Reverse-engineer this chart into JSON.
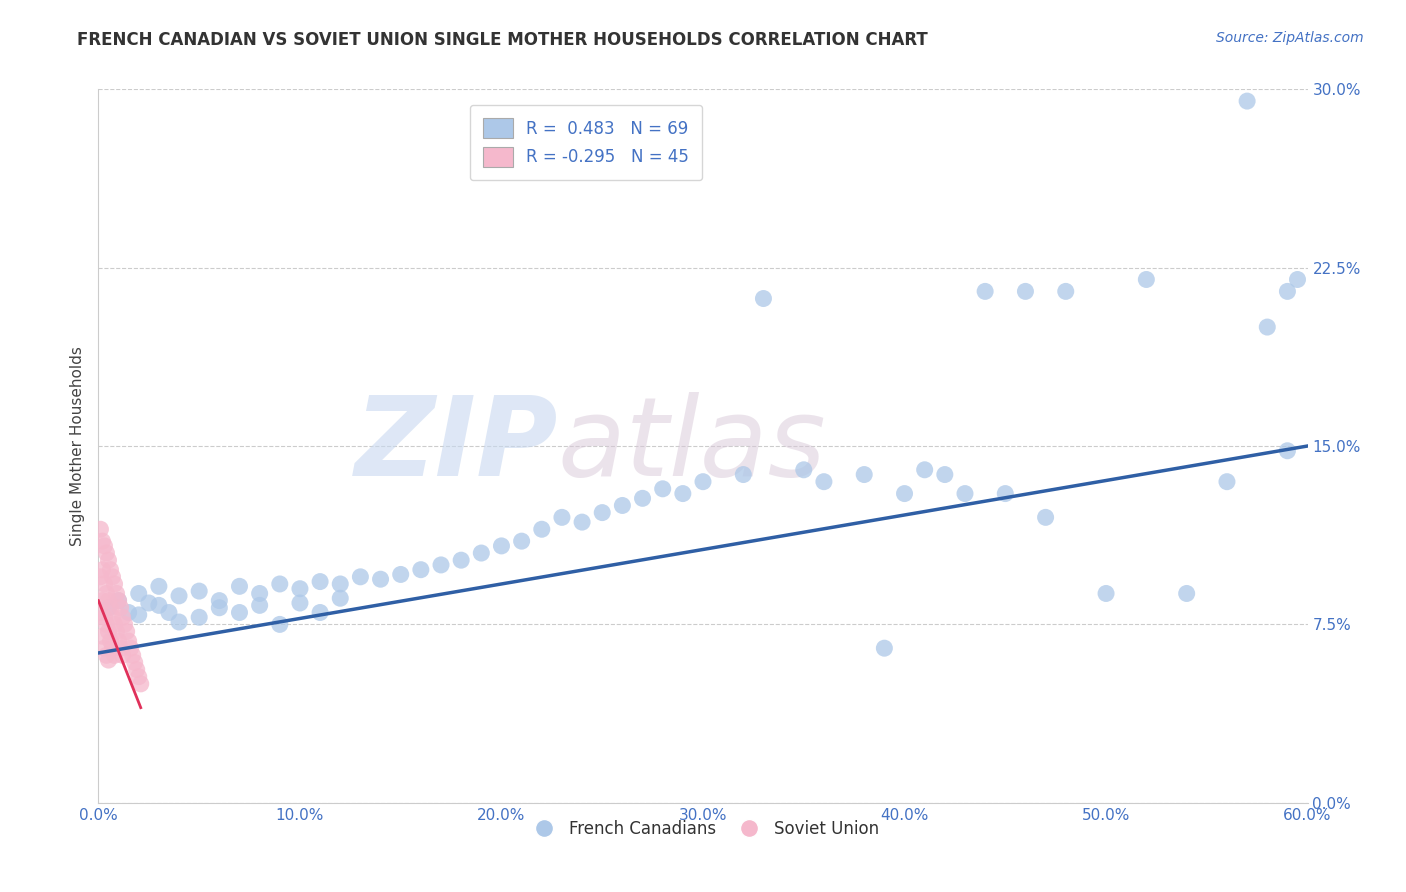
{
  "title": "FRENCH CANADIAN VS SOVIET UNION SINGLE MOTHER HOUSEHOLDS CORRELATION CHART",
  "source_text": "Source: ZipAtlas.com",
  "xlabel_ticks": [
    "0.0%",
    "10.0%",
    "20.0%",
    "30.0%",
    "40.0%",
    "50.0%",
    "60.0%"
  ],
  "ylabel_ticks": [
    "0.0%",
    "7.5%",
    "15.0%",
    "22.5%",
    "30.0%"
  ],
  "xlim": [
    0.0,
    0.6
  ],
  "ylim": [
    0.0,
    0.3
  ],
  "R_blue": 0.483,
  "N_blue": 69,
  "R_pink": -0.295,
  "N_pink": 45,
  "legend_label_blue": "French Canadians",
  "legend_label_pink": "Soviet Union",
  "watermark_text": "ZIP",
  "watermark_text2": "atlas",
  "blue_scatter_color": "#adc8e8",
  "blue_line_color": "#2f5fa5",
  "pink_scatter_color": "#f5b8cc",
  "pink_line_color": "#e0305a",
  "blue_scatter_x": [
    0.005,
    0.01,
    0.015,
    0.02,
    0.02,
    0.025,
    0.03,
    0.03,
    0.035,
    0.04,
    0.04,
    0.05,
    0.05,
    0.06,
    0.06,
    0.07,
    0.07,
    0.08,
    0.08,
    0.09,
    0.09,
    0.1,
    0.1,
    0.11,
    0.11,
    0.12,
    0.12,
    0.13,
    0.14,
    0.15,
    0.16,
    0.17,
    0.18,
    0.19,
    0.2,
    0.21,
    0.22,
    0.23,
    0.24,
    0.25,
    0.26,
    0.27,
    0.28,
    0.29,
    0.3,
    0.32,
    0.33,
    0.35,
    0.36,
    0.38,
    0.39,
    0.4,
    0.41,
    0.42,
    0.43,
    0.44,
    0.45,
    0.46,
    0.47,
    0.48,
    0.5,
    0.52,
    0.54,
    0.56,
    0.57,
    0.58,
    0.59,
    0.59,
    0.595
  ],
  "blue_scatter_y": [
    0.082,
    0.085,
    0.08,
    0.088,
    0.079,
    0.084,
    0.083,
    0.091,
    0.08,
    0.087,
    0.076,
    0.089,
    0.078,
    0.085,
    0.082,
    0.091,
    0.08,
    0.088,
    0.083,
    0.092,
    0.075,
    0.09,
    0.084,
    0.093,
    0.08,
    0.092,
    0.086,
    0.095,
    0.094,
    0.096,
    0.098,
    0.1,
    0.102,
    0.105,
    0.108,
    0.11,
    0.115,
    0.12,
    0.118,
    0.122,
    0.125,
    0.128,
    0.132,
    0.13,
    0.135,
    0.138,
    0.212,
    0.14,
    0.135,
    0.138,
    0.065,
    0.13,
    0.14,
    0.138,
    0.13,
    0.215,
    0.13,
    0.215,
    0.12,
    0.215,
    0.088,
    0.22,
    0.088,
    0.135,
    0.295,
    0.2,
    0.148,
    0.215,
    0.22
  ],
  "pink_scatter_x": [
    0.001,
    0.001,
    0.001,
    0.002,
    0.002,
    0.002,
    0.002,
    0.003,
    0.003,
    0.003,
    0.003,
    0.004,
    0.004,
    0.004,
    0.004,
    0.005,
    0.005,
    0.005,
    0.005,
    0.006,
    0.006,
    0.006,
    0.007,
    0.007,
    0.007,
    0.008,
    0.008,
    0.008,
    0.009,
    0.009,
    0.01,
    0.01,
    0.011,
    0.011,
    0.012,
    0.012,
    0.013,
    0.014,
    0.015,
    0.016,
    0.017,
    0.018,
    0.019,
    0.02,
    0.021
  ],
  "pink_scatter_y": [
    0.115,
    0.095,
    0.08,
    0.11,
    0.098,
    0.085,
    0.07,
    0.108,
    0.092,
    0.078,
    0.065,
    0.105,
    0.088,
    0.075,
    0.062,
    0.102,
    0.085,
    0.072,
    0.06,
    0.098,
    0.082,
    0.068,
    0.095,
    0.078,
    0.065,
    0.092,
    0.075,
    0.062,
    0.088,
    0.072,
    0.085,
    0.068,
    0.082,
    0.065,
    0.078,
    0.062,
    0.075,
    0.072,
    0.068,
    0.065,
    0.062,
    0.059,
    0.056,
    0.053,
    0.05
  ],
  "blue_line_x0": 0.0,
  "blue_line_x1": 0.6,
  "blue_line_y0": 0.063,
  "blue_line_y1": 0.15,
  "pink_line_x0": 0.0,
  "pink_line_x1": 0.021,
  "pink_line_y0": 0.085,
  "pink_line_y1": 0.04,
  "title_fontsize": 12,
  "axis_label_fontsize": 11,
  "tick_fontsize": 11,
  "legend_fontsize": 12,
  "source_fontsize": 10
}
